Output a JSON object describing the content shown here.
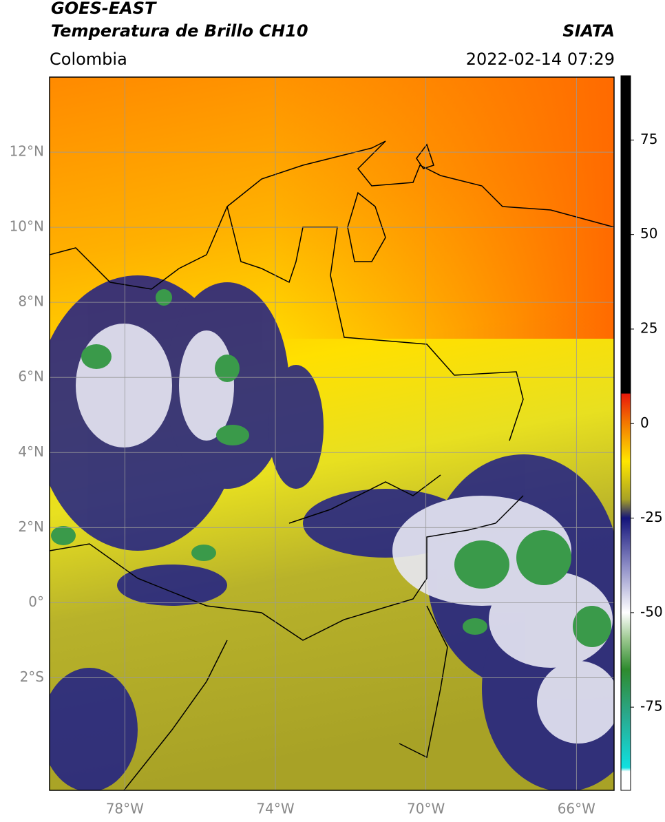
{
  "header": {
    "title": "GOES-EAST",
    "subtitle": "Temperatura de Brillo CH10",
    "region": "Colombia",
    "source": "SIATA",
    "datetime": "2022-02-14 07:29"
  },
  "map": {
    "lonlim": [
      -80,
      -65
    ],
    "latlim": [
      -5,
      14
    ],
    "lon_ticks": [
      {
        "value": -78,
        "label": "78°W"
      },
      {
        "value": -74,
        "label": "74°W"
      },
      {
        "value": -70,
        "label": "70°W"
      },
      {
        "value": -66,
        "label": "66°W"
      }
    ],
    "lat_ticks": [
      {
        "value": 12,
        "label": "12°N"
      },
      {
        "value": 10,
        "label": "10°N"
      },
      {
        "value": 8,
        "label": "8°N"
      },
      {
        "value": 6,
        "label": "6°N"
      },
      {
        "value": 4,
        "label": "4°N"
      },
      {
        "value": 2,
        "label": "2°N"
      },
      {
        "value": 0,
        "label": "0°"
      },
      {
        "value": -2,
        "label": "2°S"
      }
    ],
    "grid": true
  },
  "colorbar": {
    "lim": [
      -97,
      92
    ],
    "ticks": [
      75,
      50,
      25,
      0,
      -25,
      -50,
      -75
    ],
    "stops": [
      {
        "value": 92,
        "color": "#000000"
      },
      {
        "value": 8,
        "color": "#000000"
      },
      {
        "value": 7.9,
        "color": "#e8180a"
      },
      {
        "value": 0,
        "color": "#f47a00"
      },
      {
        "value": -10,
        "color": "#ffe600"
      },
      {
        "value": -20,
        "color": "#a8a226"
      },
      {
        "value": -25,
        "color": "#14147a"
      },
      {
        "value": -38,
        "color": "#9090c8"
      },
      {
        "value": -50,
        "color": "#ffffff"
      },
      {
        "value": -57,
        "color": "#9cc890"
      },
      {
        "value": -65,
        "color": "#2e8b2e"
      },
      {
        "value": -77,
        "color": "#2aa88c"
      },
      {
        "value": -91,
        "color": "#10e0e0"
      },
      {
        "value": -92,
        "color": "#ffffff"
      },
      {
        "value": -97,
        "color": "#ffffff"
      }
    ]
  }
}
